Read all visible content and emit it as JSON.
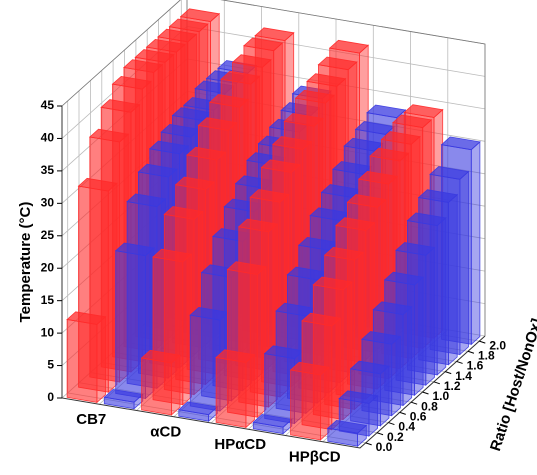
{
  "chart_data": {
    "type": "bar3d",
    "categories": [
      "CB7",
      "αCD",
      "HPαCD",
      "HPβCD"
    ],
    "series": [
      {
        "color": "#ff2a2a",
        "values": [
          [
            12,
            31,
            37,
            40,
            42,
            43,
            43,
            43,
            43,
            43,
            43
          ],
          [
            8,
            22,
            27,
            30,
            33,
            36,
            38,
            40,
            41,
            42,
            42
          ],
          [
            10,
            22,
            27,
            30,
            33,
            35,
            37,
            39,
            40,
            41,
            42
          ],
          [
            10,
            16,
            20,
            23,
            26,
            28,
            30,
            32,
            33,
            34,
            34
          ]
        ]
      },
      {
        "color": "#3a3ae0",
        "values": [
          [
            1,
            22,
            28,
            31,
            33,
            34,
            35,
            35,
            36,
            36,
            36
          ],
          [
            1,
            14,
            19,
            23,
            26,
            28,
            30,
            31,
            32,
            33,
            34
          ],
          [
            1,
            10,
            15,
            19,
            22,
            25,
            27,
            29,
            31,
            32,
            33
          ],
          [
            2,
            5,
            8,
            11,
            14,
            17,
            20,
            23,
            25,
            27,
            30
          ]
        ]
      }
    ],
    "ylabel": "Ratio [Host/NonOx]",
    "ylim": [
      0,
      2
    ],
    "yticks": [
      {
        "value": 0,
        "label": "0.0"
      },
      {
        "value": 0.2,
        "label": "0.2"
      },
      {
        "value": 0.4,
        "label": "0.4"
      },
      {
        "value": 0.6,
        "label": "0.6"
      },
      {
        "value": 0.8,
        "label": "0.8"
      },
      {
        "value": 1,
        "label": "1.0"
      },
      {
        "value": 1.2,
        "label": "1.2"
      },
      {
        "value": 1.4,
        "label": "1.4"
      },
      {
        "value": 1.6,
        "label": "1.6"
      },
      {
        "value": 1.8,
        "label": "1.8"
      },
      {
        "value": 2,
        "label": "2.0"
      }
    ],
    "zlabel": "Temperature (°C)",
    "zlim": [
      0,
      45
    ],
    "zticks": [
      0,
      5,
      10,
      15,
      20,
      25,
      30,
      35,
      40,
      45
    ],
    "grid": true
  }
}
